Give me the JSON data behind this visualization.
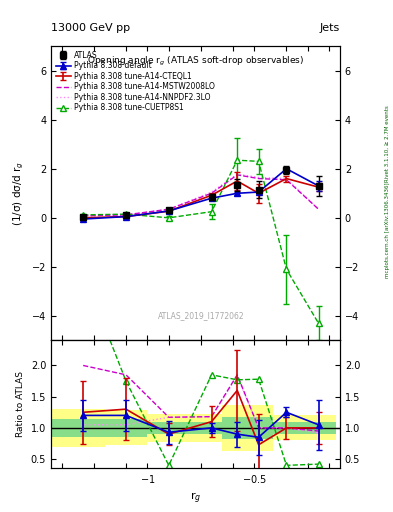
{
  "title_top": "13000 GeV pp",
  "title_right": "Jets",
  "plot_title": "Opening angle r$_g$ (ATLAS soft-drop observables)",
  "xlabel": "r$_g$",
  "ylabel_main": "(1/σ) dσ/d r$_g$",
  "ylabel_ratio": "Ratio to ATLAS",
  "watermark": "ATLAS_2019_I1772062",
  "right_label_top": "Rivet 3.1.10, ≥ 2.7M events",
  "right_label_bottom": "mcplots.cern.ch [arXiv:1306.3436]",
  "xvalues": [
    -1.3,
    -1.1,
    -0.9,
    -0.7,
    -0.58,
    -0.48,
    -0.35,
    -0.2
  ],
  "ATLAS_y": [
    0.05,
    0.1,
    0.3,
    0.85,
    1.35,
    1.15,
    1.95,
    1.3
  ],
  "ATLAS_yerr": [
    0.05,
    0.05,
    0.1,
    0.12,
    0.25,
    0.35,
    0.18,
    0.4
  ],
  "default_y": [
    -0.05,
    0.05,
    0.28,
    0.8,
    1.0,
    1.05,
    2.0,
    1.3
  ],
  "default_yerr": [
    0.04,
    0.04,
    0.04,
    0.04,
    0.06,
    0.07,
    0.07,
    0.2
  ],
  "CTEQL1_y": [
    0.0,
    0.05,
    0.27,
    0.92,
    1.5,
    1.0,
    1.6,
    1.25
  ],
  "CTEQL1_yerr": [
    0.04,
    0.04,
    0.04,
    0.08,
    0.35,
    0.38,
    0.12,
    0.15
  ],
  "MSTW_y": [
    0.08,
    0.12,
    0.35,
    1.0,
    1.75,
    1.6,
    1.55,
    0.35
  ],
  "NNPDF_y": [
    0.08,
    0.12,
    0.35,
    1.05,
    1.78,
    1.65,
    1.6,
    0.35
  ],
  "CUETP_y": [
    0.12,
    0.15,
    0.0,
    0.25,
    2.35,
    2.3,
    -2.1,
    -4.3
  ],
  "CUETP_yerr": [
    0.05,
    0.05,
    0.08,
    0.3,
    0.9,
    0.5,
    1.4,
    0.7
  ],
  "ratio_default_y": [
    1.2,
    1.2,
    0.93,
    1.0,
    0.9,
    0.85,
    1.25,
    1.05
  ],
  "ratio_CTEQL1_y": [
    1.25,
    1.3,
    0.9,
    1.1,
    1.6,
    0.73,
    1.0,
    1.0
  ],
  "ratio_MSTW_y": [
    2.0,
    1.85,
    1.17,
    1.18,
    1.85,
    1.0,
    1.0,
    0.95
  ],
  "ratio_NNPDF_y": [
    1.05,
    1.05,
    1.17,
    1.18,
    1.83,
    1.0,
    1.0,
    0.92
  ],
  "ratio_CUETP_y": [
    3.5,
    1.75,
    0.4,
    1.85,
    1.77,
    1.78,
    0.4,
    0.42
  ],
  "ratio_default_yerr": [
    0.25,
    0.25,
    0.18,
    0.08,
    0.2,
    0.28,
    0.08,
    0.4
  ],
  "ratio_CTEQL1_yerr": [
    0.5,
    0.5,
    0.18,
    0.25,
    0.65,
    0.5,
    0.18,
    0.25
  ],
  "color_atlas": "#000000",
  "color_default": "#0000cc",
  "color_CTEQL1": "#cc0000",
  "color_MSTW": "#cc00cc",
  "color_NNPDF": "#ff88ff",
  "color_CUETP": "#00aa00",
  "xlim": [
    -1.45,
    -0.1
  ],
  "ylim_main": [
    -5.0,
    7.0
  ],
  "ylim_ratio": [
    0.35,
    2.4
  ],
  "yticks_main": [
    -4,
    -2,
    0,
    2,
    4,
    6
  ],
  "yticks_ratio": [
    0.5,
    1.0,
    1.5,
    2.0
  ]
}
